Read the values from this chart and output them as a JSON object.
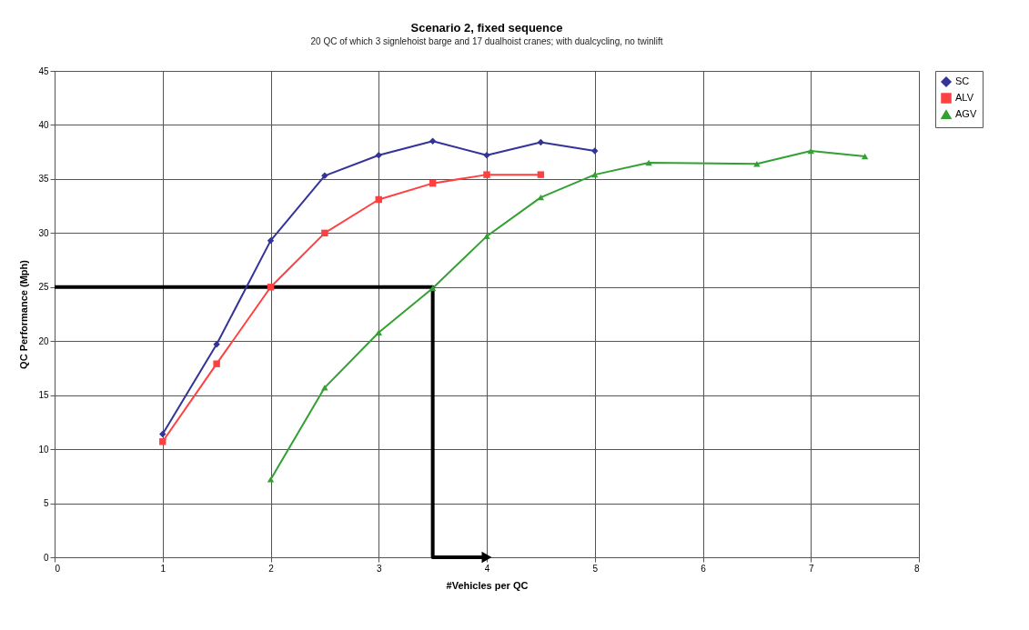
{
  "chart_data": {
    "type": "line",
    "title": "Scenario 2, fixed sequence",
    "subtitle": "20 QC of which 3 signlehoist barge and 17 dualhoist cranes; with dualcycling, no twinlift",
    "xlabel": "#Vehicles per QC",
    "ylabel": "QC Performance (Mph)",
    "xlim": [
      0,
      8
    ],
    "xticks": [
      0,
      1,
      2,
      3,
      4,
      5,
      6,
      7,
      8
    ],
    "ylim": [
      0,
      45
    ],
    "yticks": [
      0,
      5,
      10,
      15,
      20,
      25,
      30,
      35,
      40,
      45
    ],
    "grid": true,
    "legend": "right",
    "series": [
      {
        "color": "#000000",
        "marker": "none",
        "x": [
          0,
          3.5,
          3.5,
          4
        ],
        "values": [
          25,
          25,
          0,
          0
        ]
      },
      {
        "name": "SC",
        "color": "#333399",
        "marker": "diamond",
        "x": [
          1,
          1.5,
          2,
          2.5,
          3,
          3.5,
          4,
          4.5,
          5
        ],
        "values": [
          11.4,
          19.7,
          29.3,
          35.3,
          37.2,
          38.5,
          37.2,
          38.4,
          37.6
        ]
      },
      {
        "name": "ALV",
        "color": "#ff4040",
        "marker": "square",
        "x": [
          1,
          1.5,
          2,
          2.5,
          3,
          3.5,
          4,
          4.5
        ],
        "values": [
          10.7,
          17.9,
          25.0,
          30.0,
          33.1,
          34.6,
          35.4,
          35.4
        ]
      },
      {
        "name": "AGV",
        "color": "#33a033",
        "marker": "triangle",
        "x": [
          2,
          2.5,
          3,
          3.5,
          4,
          4.5,
          5,
          5.5,
          6.5,
          7,
          7.5
        ],
        "values": [
          7.2,
          15.7,
          20.8,
          24.9,
          29.7,
          33.3,
          35.4,
          36.5,
          36.4,
          37.6,
          37.1
        ]
      }
    ]
  }
}
